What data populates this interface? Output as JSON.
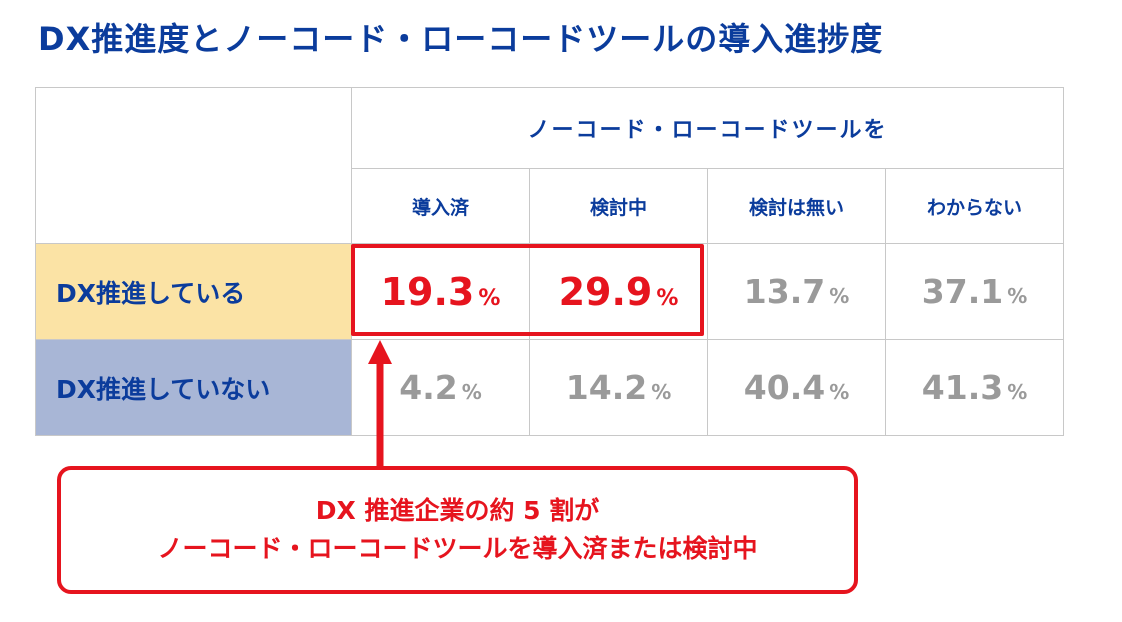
{
  "title": "DX推進度とノーコード・ローコードツールの導入進捗度",
  "table": {
    "group_header": "ノーコード・ローコードツールを",
    "columns": [
      "導入済",
      "検討中",
      "検討は無い",
      "わからない"
    ],
    "unit": "%",
    "rows": [
      {
        "label": "DX推進している",
        "values": [
          "19.3",
          "29.9",
          "13.7",
          "37.1"
        ]
      },
      {
        "label": "DX推進していない",
        "values": [
          "4.2",
          "14.2",
          "40.4",
          "41.3"
        ]
      }
    ]
  },
  "callout": {
    "line1": "DX 推進企業の約 5 割が",
    "line2": "ノーコード・ローコードツールを導入済または検討中"
  },
  "colors": {
    "title": "#0b3c9c",
    "highlight": "#e6141e",
    "row_dx_yes": "#fbe3a5",
    "row_dx_no": "#a8b6d6",
    "muted_value": "#9a9a9a"
  },
  "chart_data": {
    "type": "table",
    "title": "DX推進度とノーコード・ローコードツールの導入進捗度",
    "categories": [
      "導入済",
      "検討中",
      "検討は無い",
      "わからない"
    ],
    "series": [
      {
        "name": "DX推進している",
        "values": [
          19.3,
          29.9,
          13.7,
          37.1
        ]
      },
      {
        "name": "DX推進していない",
        "values": [
          4.2,
          14.2,
          40.4,
          41.3
        ]
      }
    ],
    "unit": "%",
    "highlighted": {
      "series": "DX推進している",
      "categories": [
        "導入済",
        "検討中"
      ]
    }
  }
}
